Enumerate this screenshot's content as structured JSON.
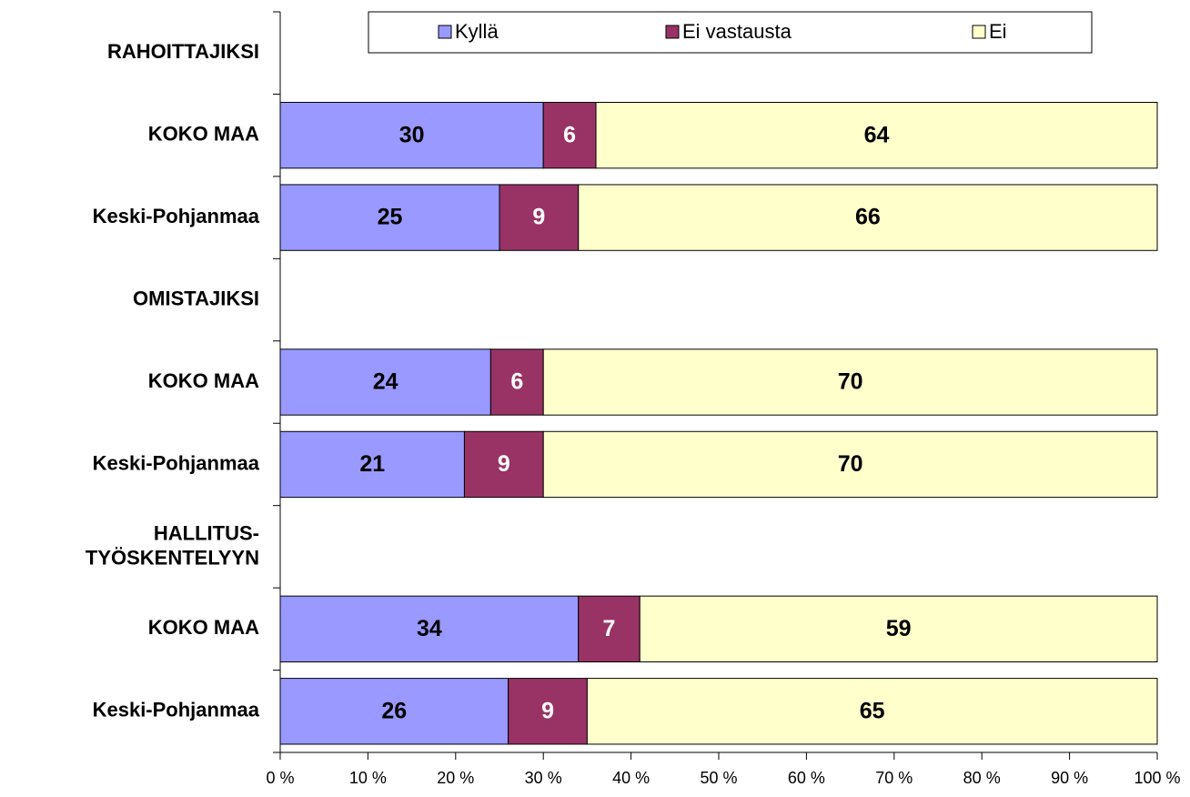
{
  "chart_data": {
    "type": "stacked-barh",
    "categories": [
      "RAHOITTAJIKSI",
      "KOKO MAA",
      "Keski-Pohjanmaa",
      "OMISTAJIKSI",
      "KOKO MAA",
      "Keski-Pohjanmaa",
      "HALLITUS-\nTYÖSKENTELYYN",
      "KOKO MAA",
      "Keski-Pohjanmaa"
    ],
    "series": [
      {
        "name": "Kyllä",
        "color": "#9999ff",
        "values": [
          null,
          30,
          25,
          null,
          24,
          21,
          null,
          34,
          26
        ]
      },
      {
        "name": "Ei vastausta",
        "color": "#993366",
        "values": [
          null,
          6,
          9,
          null,
          6,
          9,
          null,
          7,
          9
        ]
      },
      {
        "name": "Ei",
        "color": "#ffffcc",
        "values": [
          null,
          64,
          66,
          null,
          70,
          70,
          null,
          59,
          65
        ]
      }
    ],
    "xlim": [
      0,
      100
    ],
    "xticks": [
      {
        "value": 0,
        "label": "0 %"
      },
      {
        "value": 10,
        "label": "10 %"
      },
      {
        "value": 20,
        "label": "20 %"
      },
      {
        "value": 30,
        "label": "30 %"
      },
      {
        "value": 40,
        "label": "40 %"
      },
      {
        "value": 50,
        "label": "50 %"
      },
      {
        "value": 60,
        "label": "60 %"
      },
      {
        "value": 70,
        "label": "70 %"
      },
      {
        "value": 80,
        "label": "80 %"
      },
      {
        "value": 90,
        "label": "90 %"
      },
      {
        "value": 100,
        "label": "100 %"
      }
    ],
    "legend": "top"
  }
}
